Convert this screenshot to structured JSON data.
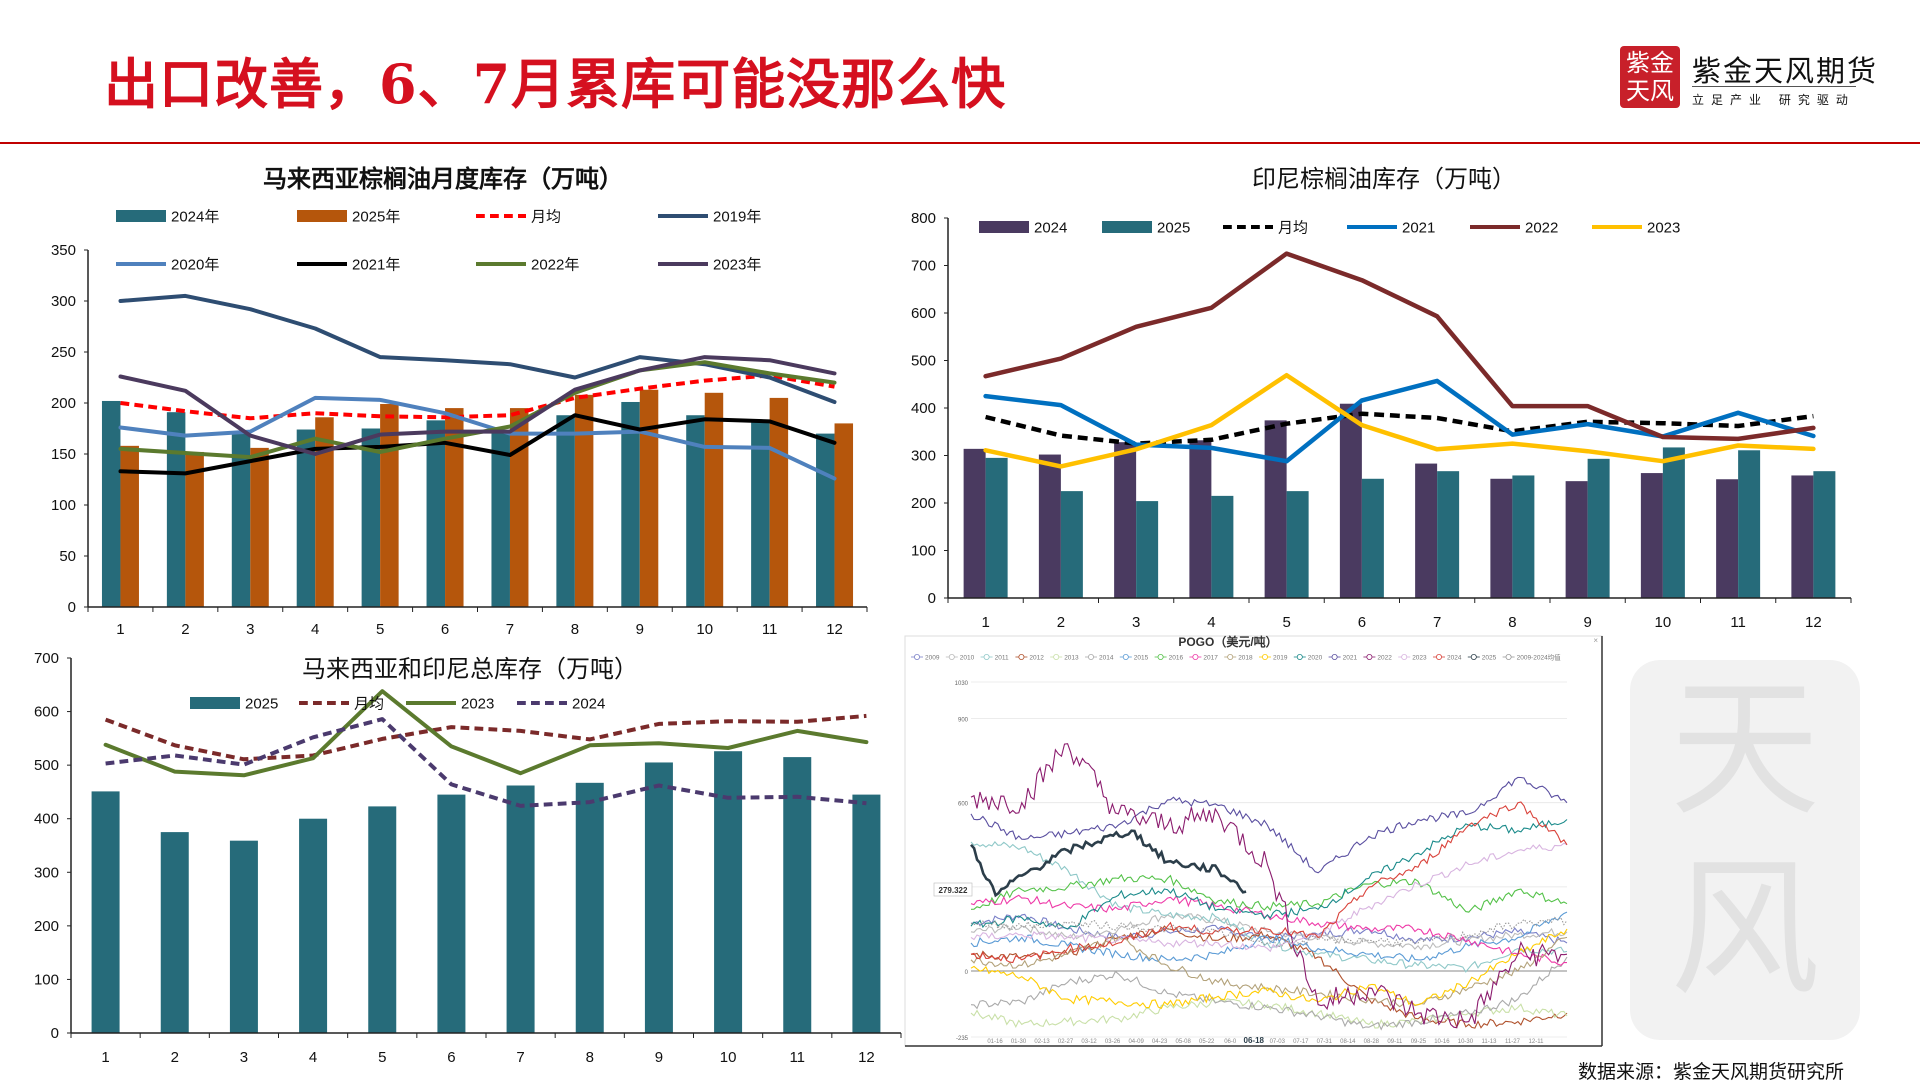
{
  "header": {
    "title": "出口改善，6、7月累库可能没那么快",
    "logo_seal": "紫金天风",
    "logo_name": "紫金天风期货",
    "logo_slogan": "立足产业 研究驱动"
  },
  "watermark": "天风",
  "footer": {
    "source": "数据来源：紫金天风期货研究所"
  },
  "colors": {
    "brand_red": "#d5101f"
  },
  "chart_data": [
    {
      "type": "bar+line",
      "title": "马来西亚棕榈油月度库存（万吨）",
      "categories": [
        "1",
        "2",
        "3",
        "4",
        "5",
        "6",
        "7",
        "8",
        "9",
        "10",
        "11",
        "12"
      ],
      "ylim": [
        0,
        350
      ],
      "yticks": [
        0,
        50,
        100,
        150,
        200,
        250,
        300,
        350
      ],
      "legend": "top",
      "series": [
        {
          "name": "2024年",
          "kind": "bar",
          "color": "#266b7a",
          "values": [
            202,
            191,
            170,
            174,
            175,
            183,
            172,
            188,
            201,
            188,
            182,
            170
          ]
        },
        {
          "name": "2025年",
          "kind": "bar",
          "color": "#b5560c",
          "values": [
            158,
            152,
            156,
            186,
            199,
            195,
            195,
            208,
            213,
            210,
            205,
            180
          ]
        },
        {
          "name": "月均",
          "kind": "line",
          "style": "dashed",
          "color": "#ff0000",
          "values": [
            200,
            192,
            185,
            190,
            187,
            186,
            188,
            205,
            214,
            222,
            227,
            216
          ]
        },
        {
          "name": "2019年",
          "kind": "line",
          "color": "#2e4d72",
          "values": [
            300,
            305,
            292,
            273,
            245,
            242,
            238,
            225,
            245,
            238,
            225,
            201
          ]
        },
        {
          "name": "2020年",
          "kind": "line",
          "color": "#4f81bd",
          "values": [
            176,
            168,
            172,
            205,
            203,
            190,
            170,
            170,
            172,
            157,
            156,
            126
          ]
        },
        {
          "name": "2021年",
          "kind": "line",
          "color": "#000000",
          "values": [
            133,
            131,
            143,
            155,
            157,
            161,
            149,
            188,
            174,
            184,
            182,
            161
          ]
        },
        {
          "name": "2022年",
          "kind": "line",
          "color": "#5b7a2e",
          "values": [
            155,
            151,
            147,
            165,
            152,
            165,
            177,
            210,
            232,
            240,
            229,
            220
          ]
        },
        {
          "name": "2023年",
          "kind": "line",
          "color": "#4b3a5e",
          "values": [
            226,
            212,
            168,
            150,
            169,
            172,
            172,
            213,
            232,
            245,
            242,
            229
          ]
        }
      ]
    },
    {
      "type": "bar+line",
      "title": "印尼棕榈油库存（万吨）",
      "categories": [
        "1",
        "2",
        "3",
        "4",
        "5",
        "6",
        "7",
        "8",
        "9",
        "10",
        "11",
        "12"
      ],
      "ylim": [
        0,
        800
      ],
      "yticks": [
        0,
        100,
        200,
        300,
        400,
        500,
        600,
        700,
        800
      ],
      "legend": "top",
      "series": [
        {
          "name": "2024",
          "kind": "bar",
          "color": "#4a3a60",
          "values": [
            314,
            302,
            328,
            332,
            374,
            409,
            283,
            251,
            246,
            263,
            250,
            258
          ]
        },
        {
          "name": "2025",
          "kind": "bar",
          "color": "#266b7a",
          "values": [
            295,
            225,
            204,
            215,
            225,
            251,
            267,
            258,
            293,
            317,
            311,
            267
          ]
        },
        {
          "name": "月均",
          "kind": "line",
          "style": "dashed",
          "color": "#000000",
          "values": [
            381,
            342,
            325,
            333,
            367,
            388,
            379,
            351,
            371,
            368,
            362,
            383
          ]
        },
        {
          "name": "2021",
          "kind": "line",
          "color": "#0070c0",
          "values": [
            425,
            406,
            323,
            316,
            288,
            416,
            457,
            344,
            366,
            340,
            390,
            341
          ]
        },
        {
          "name": "2022",
          "kind": "line",
          "color": "#7b2a2a",
          "values": [
            467,
            504,
            571,
            611,
            725,
            669,
            593,
            404,
            404,
            339,
            335,
            358
          ]
        },
        {
          "name": "2023",
          "kind": "line",
          "color": "#ffc000",
          "values": [
            311,
            277,
            313,
            364,
            469,
            364,
            313,
            325,
            309,
            288,
            321,
            314
          ]
        }
      ]
    },
    {
      "type": "bar+line",
      "title": "马来西亚和印尼总库存（万吨）",
      "categories": [
        "1",
        "2",
        "3",
        "4",
        "5",
        "6",
        "7",
        "8",
        "9",
        "10",
        "11",
        "12"
      ],
      "ylim": [
        0,
        700
      ],
      "yticks": [
        0,
        100,
        200,
        300,
        400,
        500,
        600,
        700
      ],
      "legend": "top",
      "series": [
        {
          "name": "2025",
          "kind": "bar",
          "color": "#266b7a",
          "values": [
            451,
            375,
            359,
            400,
            423,
            445,
            462,
            467,
            505,
            526,
            515,
            445
          ]
        },
        {
          "name": "月均",
          "kind": "line",
          "style": "dashed",
          "color": "#7b2a2a",
          "values": [
            585,
            537,
            511,
            518,
            549,
            571,
            564,
            548,
            577,
            582,
            581,
            592
          ]
        },
        {
          "name": "2023",
          "kind": "line",
          "color": "#5b7a2e",
          "values": [
            538,
            488,
            481,
            513,
            638,
            535,
            485,
            537,
            541,
            532,
            564,
            543
          ]
        },
        {
          "name": "2024",
          "kind": "line",
          "style": "dashed",
          "color": "#4b3a6e",
          "values": [
            503,
            518,
            501,
            552,
            586,
            464,
            424,
            431,
            462,
            439,
            441,
            429
          ]
        }
      ]
    },
    {
      "type": "line",
      "title": "POGO（美元/吨）",
      "ylim": [
        -235,
        1030
      ],
      "yticks": [
        -235,
        0,
        600,
        900,
        1030
      ],
      "gridlines": [
        -235,
        0,
        300,
        600,
        900,
        1030
      ],
      "pointer_value": "279.322",
      "highlight_x": "06-18",
      "xtick_labels": [
        "01-16",
        "01-30",
        "02-13",
        "02-27",
        "03-12",
        "03-26",
        "04-09",
        "04-23",
        "05-08",
        "05-22",
        "06-0",
        "06-18",
        "07-03",
        "07-17",
        "07-31",
        "08-14",
        "08-28",
        "09-11",
        "09-25",
        "10-16",
        "10-30",
        "11-13",
        "11-27",
        "12-11"
      ],
      "x": [
        "01-01",
        "02-01",
        "03-01",
        "04-01",
        "05-01",
        "06-01",
        "07-01",
        "08-01",
        "09-01",
        "10-01",
        "11-01",
        "12-01",
        "12-31"
      ],
      "legend": "top",
      "series": [
        {
          "name": "2009",
          "color": "#7a80c8",
          "values": [
            170,
            200,
            150,
            120,
            140,
            150,
            120,
            130,
            150,
            110,
            120,
            140,
            100
          ]
        },
        {
          "name": "2010",
          "color": "#bbbbbb",
          "values": [
            140,
            160,
            120,
            150,
            200,
            180,
            140,
            120,
            100,
            90,
            110,
            130,
            140
          ]
        },
        {
          "name": "2011",
          "color": "#8fc8c8",
          "values": [
            460,
            440,
            360,
            230,
            200,
            190,
            100,
            60,
            40,
            20,
            10,
            80,
            70
          ]
        },
        {
          "name": "2012",
          "color": "#b0522d",
          "values": [
            60,
            50,
            60,
            120,
            150,
            110,
            130,
            50,
            -100,
            -170,
            -190,
            -180,
            -150
          ]
        },
        {
          "name": "2013",
          "color": "#c9e0a8",
          "values": [
            -150,
            -190,
            -180,
            -170,
            -130,
            -110,
            -120,
            -150,
            -190,
            -180,
            -150,
            -130,
            -160
          ]
        },
        {
          "name": "2014",
          "color": "#aaaaaa",
          "values": [
            -120,
            -110,
            -40,
            -10,
            -80,
            -110,
            -130,
            -160,
            -200,
            -180,
            -150,
            -100,
            50
          ]
        },
        {
          "name": "2015",
          "color": "#5b9bd5",
          "values": [
            100,
            120,
            90,
            60,
            40,
            60,
            120,
            80,
            60,
            40,
            90,
            120,
            210
          ]
        },
        {
          "name": "2016",
          "color": "#55c24a",
          "values": [
            220,
            290,
            300,
            330,
            330,
            250,
            230,
            240,
            310,
            320,
            210,
            290,
            240
          ]
        },
        {
          "name": "2017",
          "color": "#ee3aa8",
          "values": [
            240,
            260,
            230,
            220,
            260,
            230,
            200,
            170,
            150,
            150,
            110,
            60,
            30
          ]
        },
        {
          "name": "2018",
          "color": "#b3a27a",
          "values": [
            40,
            20,
            60,
            120,
            20,
            -40,
            -60,
            -80,
            -100,
            -120,
            -60,
            0,
            120
          ]
        },
        {
          "name": "2019",
          "color": "#ffcc00",
          "values": [
            10,
            -20,
            -100,
            -110,
            -120,
            -90,
            -70,
            -110,
            -50,
            -120,
            -40,
            60,
            150
          ]
        },
        {
          "name": "2020",
          "color": "#1a8a8a",
          "values": [
            160,
            190,
            150,
            270,
            290,
            220,
            200,
            220,
            330,
            420,
            520,
            500,
            540
          ]
        },
        {
          "name": "2021",
          "color": "#5a4fa0",
          "values": [
            560,
            470,
            490,
            520,
            610,
            590,
            520,
            350,
            480,
            540,
            560,
            690,
            600
          ]
        },
        {
          "name": "2022",
          "color": "#8b1c6e",
          "values": [
            620,
            600,
            810,
            560,
            520,
            560,
            380,
            -120,
            -60,
            -150,
            -180,
            60,
            60
          ]
        },
        {
          "name": "2023",
          "color": "#d8b4e0",
          "values": [
            120,
            130,
            120,
            110,
            100,
            100,
            80,
            130,
            230,
            310,
            380,
            430,
            450
          ]
        },
        {
          "name": "2024",
          "color": "#d9423a",
          "values": [
            60,
            40,
            80,
            100,
            160,
            140,
            150,
            120,
            300,
            370,
            520,
            600,
            450
          ]
        },
        {
          "name": "2025",
          "color": "#2c3e4a",
          "x": [
            "01-01",
            "01-16",
            "02-01",
            "03-01",
            "04-09",
            "05-01",
            "06-01",
            "06-18"
          ],
          "values": [
            450,
            270,
            340,
            430,
            500,
            390,
            360,
            283
          ]
        },
        {
          "name": "2009-2024均值",
          "color": "#999999",
          "style": "dotted",
          "values": [
            170,
            160,
            170,
            160,
            150,
            140,
            100,
            110,
            110,
            100,
            130,
            170,
            180
          ]
        }
      ]
    }
  ]
}
